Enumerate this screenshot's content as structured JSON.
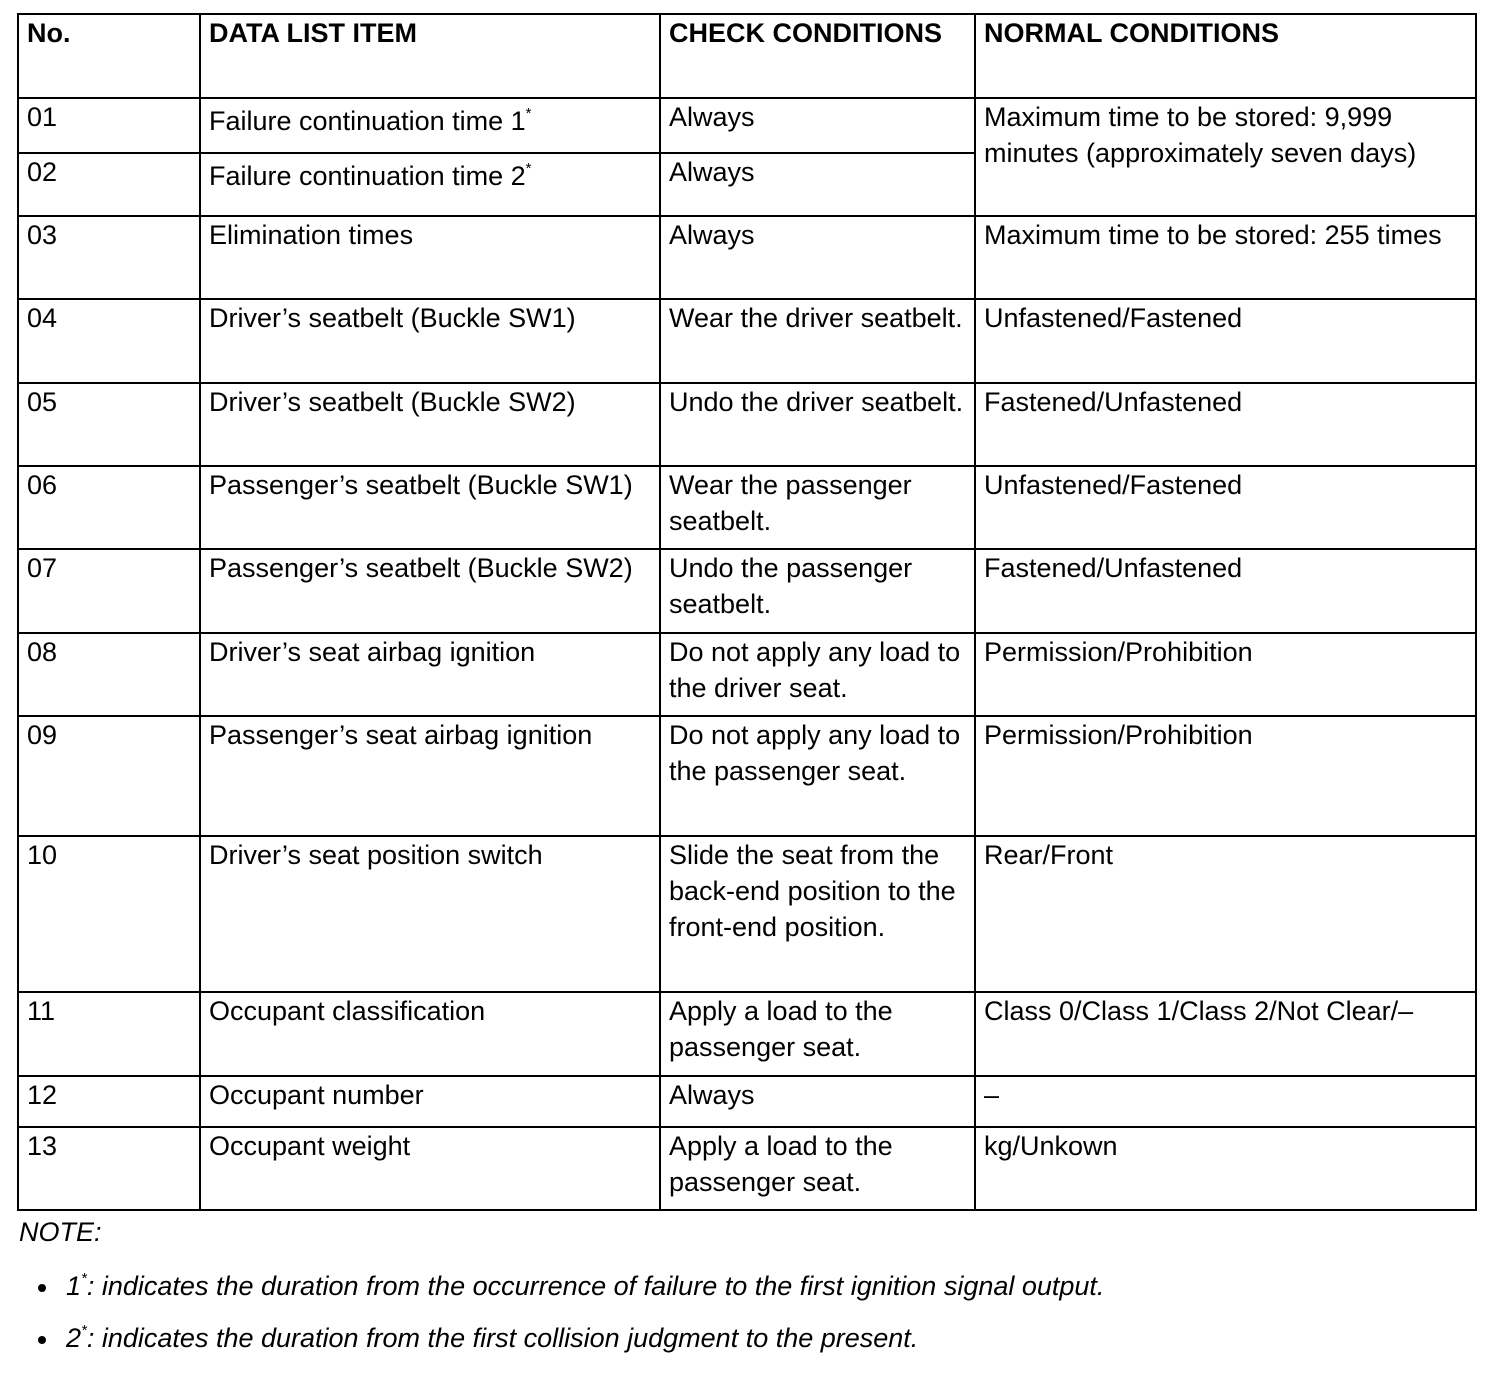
{
  "headers": [
    "No.",
    "DATA LIST ITEM",
    "CHECK CONDITIONS",
    "NORMAL CONDITIONS"
  ],
  "rows": [
    {
      "no": "01",
      "item": "Failure continuation time 1",
      "sup": "*",
      "check": "Always",
      "normal": "Maximum time to be stored: 9,999 minutes (approximately seven days)"
    },
    {
      "no": "02",
      "item": "Failure continuation time 2",
      "sup": "*",
      "check": "Always"
    },
    {
      "no": "03",
      "item": "Elimination times",
      "check": "Always",
      "normal": "Maximum time to be stored: 255 times"
    },
    {
      "no": "04",
      "item": "Driver’s seatbelt (Buckle SW1)",
      "check": "Wear the driver seatbelt.",
      "normal": "Unfastened/Fastened"
    },
    {
      "no": "05",
      "item": "Driver’s seatbelt (Buckle SW2)",
      "check": "Undo the driver seatbelt.",
      "normal": "Fastened/Unfastened"
    },
    {
      "no": "06",
      "item": "Passenger’s seatbelt (Buckle SW1)",
      "check": "Wear the passenger seatbelt.",
      "normal": "Unfastened/Fastened"
    },
    {
      "no": "07",
      "item": "Passenger’s seatbelt (Buckle SW2)",
      "check": "Undo the passenger seatbelt.",
      "normal": "Fastened/Unfastened"
    },
    {
      "no": "08",
      "item": "Driver’s seat airbag ignition",
      "check": "Do not apply any load to the driver seat.",
      "normal": "Permission/Prohibition"
    },
    {
      "no": "09",
      "item": "Passenger’s seat airbag ignition",
      "check": "Do not apply any load to the passenger seat.",
      "normal": "Permission/Prohibition"
    },
    {
      "no": "10",
      "item": "Driver’s seat position switch",
      "check": "Slide the seat from the back-end position to the front-end position.",
      "normal": "Rear/Front"
    },
    {
      "no": "11",
      "item": "Occupant classification",
      "check": "Apply a load to the passenger seat.",
      "normal": "Class 0/Class 1/Class 2/Not Clear/–"
    },
    {
      "no": "12",
      "item": "Occupant number",
      "check": "Always",
      "normal": "–"
    },
    {
      "no": "13",
      "item": "Occupant weight",
      "check": "Apply a load to the passenger seat.",
      "normal": "kg/Unkown"
    }
  ],
  "note": {
    "title": "NOTE:",
    "items": [
      {
        "ref": "1",
        "sup": "*",
        "text": ": indicates the duration from the occurrence of failure to the first ignition signal output."
      },
      {
        "ref": "2",
        "sup": "*",
        "text": ": indicates the duration from the first collision judgment to the present."
      }
    ]
  }
}
